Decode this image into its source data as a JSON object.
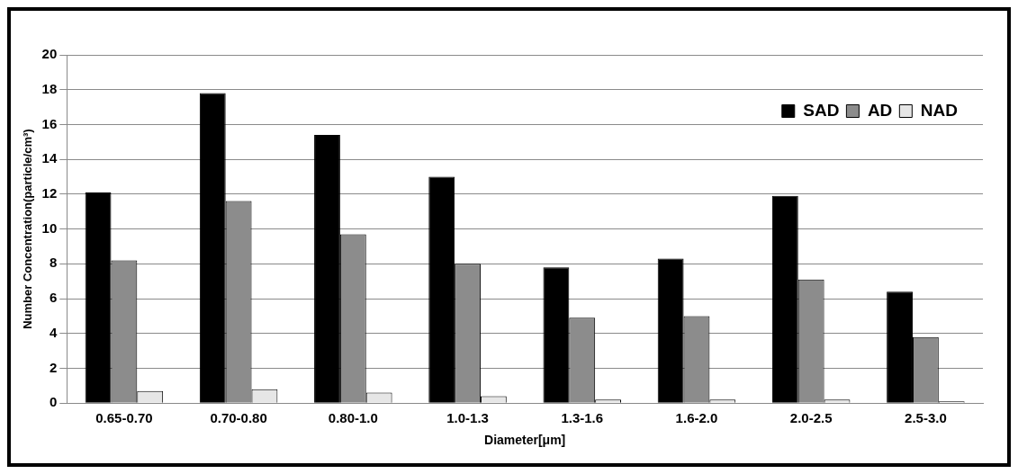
{
  "chart_data": {
    "type": "bar",
    "xlabel": "Diameter[μm]",
    "ylabel": "Number Concentration(particle/cm³)",
    "categories": [
      "0.65-0.70",
      "0.70-0.80",
      "0.80-1.0",
      "1.0-1.3",
      "1.3-1.6",
      "1.6-2.0",
      "2.0-2.5",
      "2.5-3.0"
    ],
    "series": [
      {
        "name": "SAD",
        "color": "#000000",
        "values": [
          12.1,
          17.8,
          15.4,
          13.0,
          7.8,
          8.3,
          11.9,
          6.4
        ]
      },
      {
        "name": "AD",
        "color": "#8c8c8c",
        "values": [
          8.2,
          11.6,
          9.7,
          8.0,
          4.9,
          5.0,
          7.1,
          3.8
        ]
      },
      {
        "name": "NAD",
        "color": "#e6e6e6",
        "values": [
          0.7,
          0.8,
          0.6,
          0.4,
          0.2,
          0.2,
          0.2,
          0.1
        ]
      }
    ],
    "ylim": [
      0,
      20
    ],
    "yticks": [
      0,
      2,
      4,
      6,
      8,
      10,
      12,
      14,
      16,
      18,
      20
    ],
    "grid": "y",
    "legend": "top right"
  }
}
